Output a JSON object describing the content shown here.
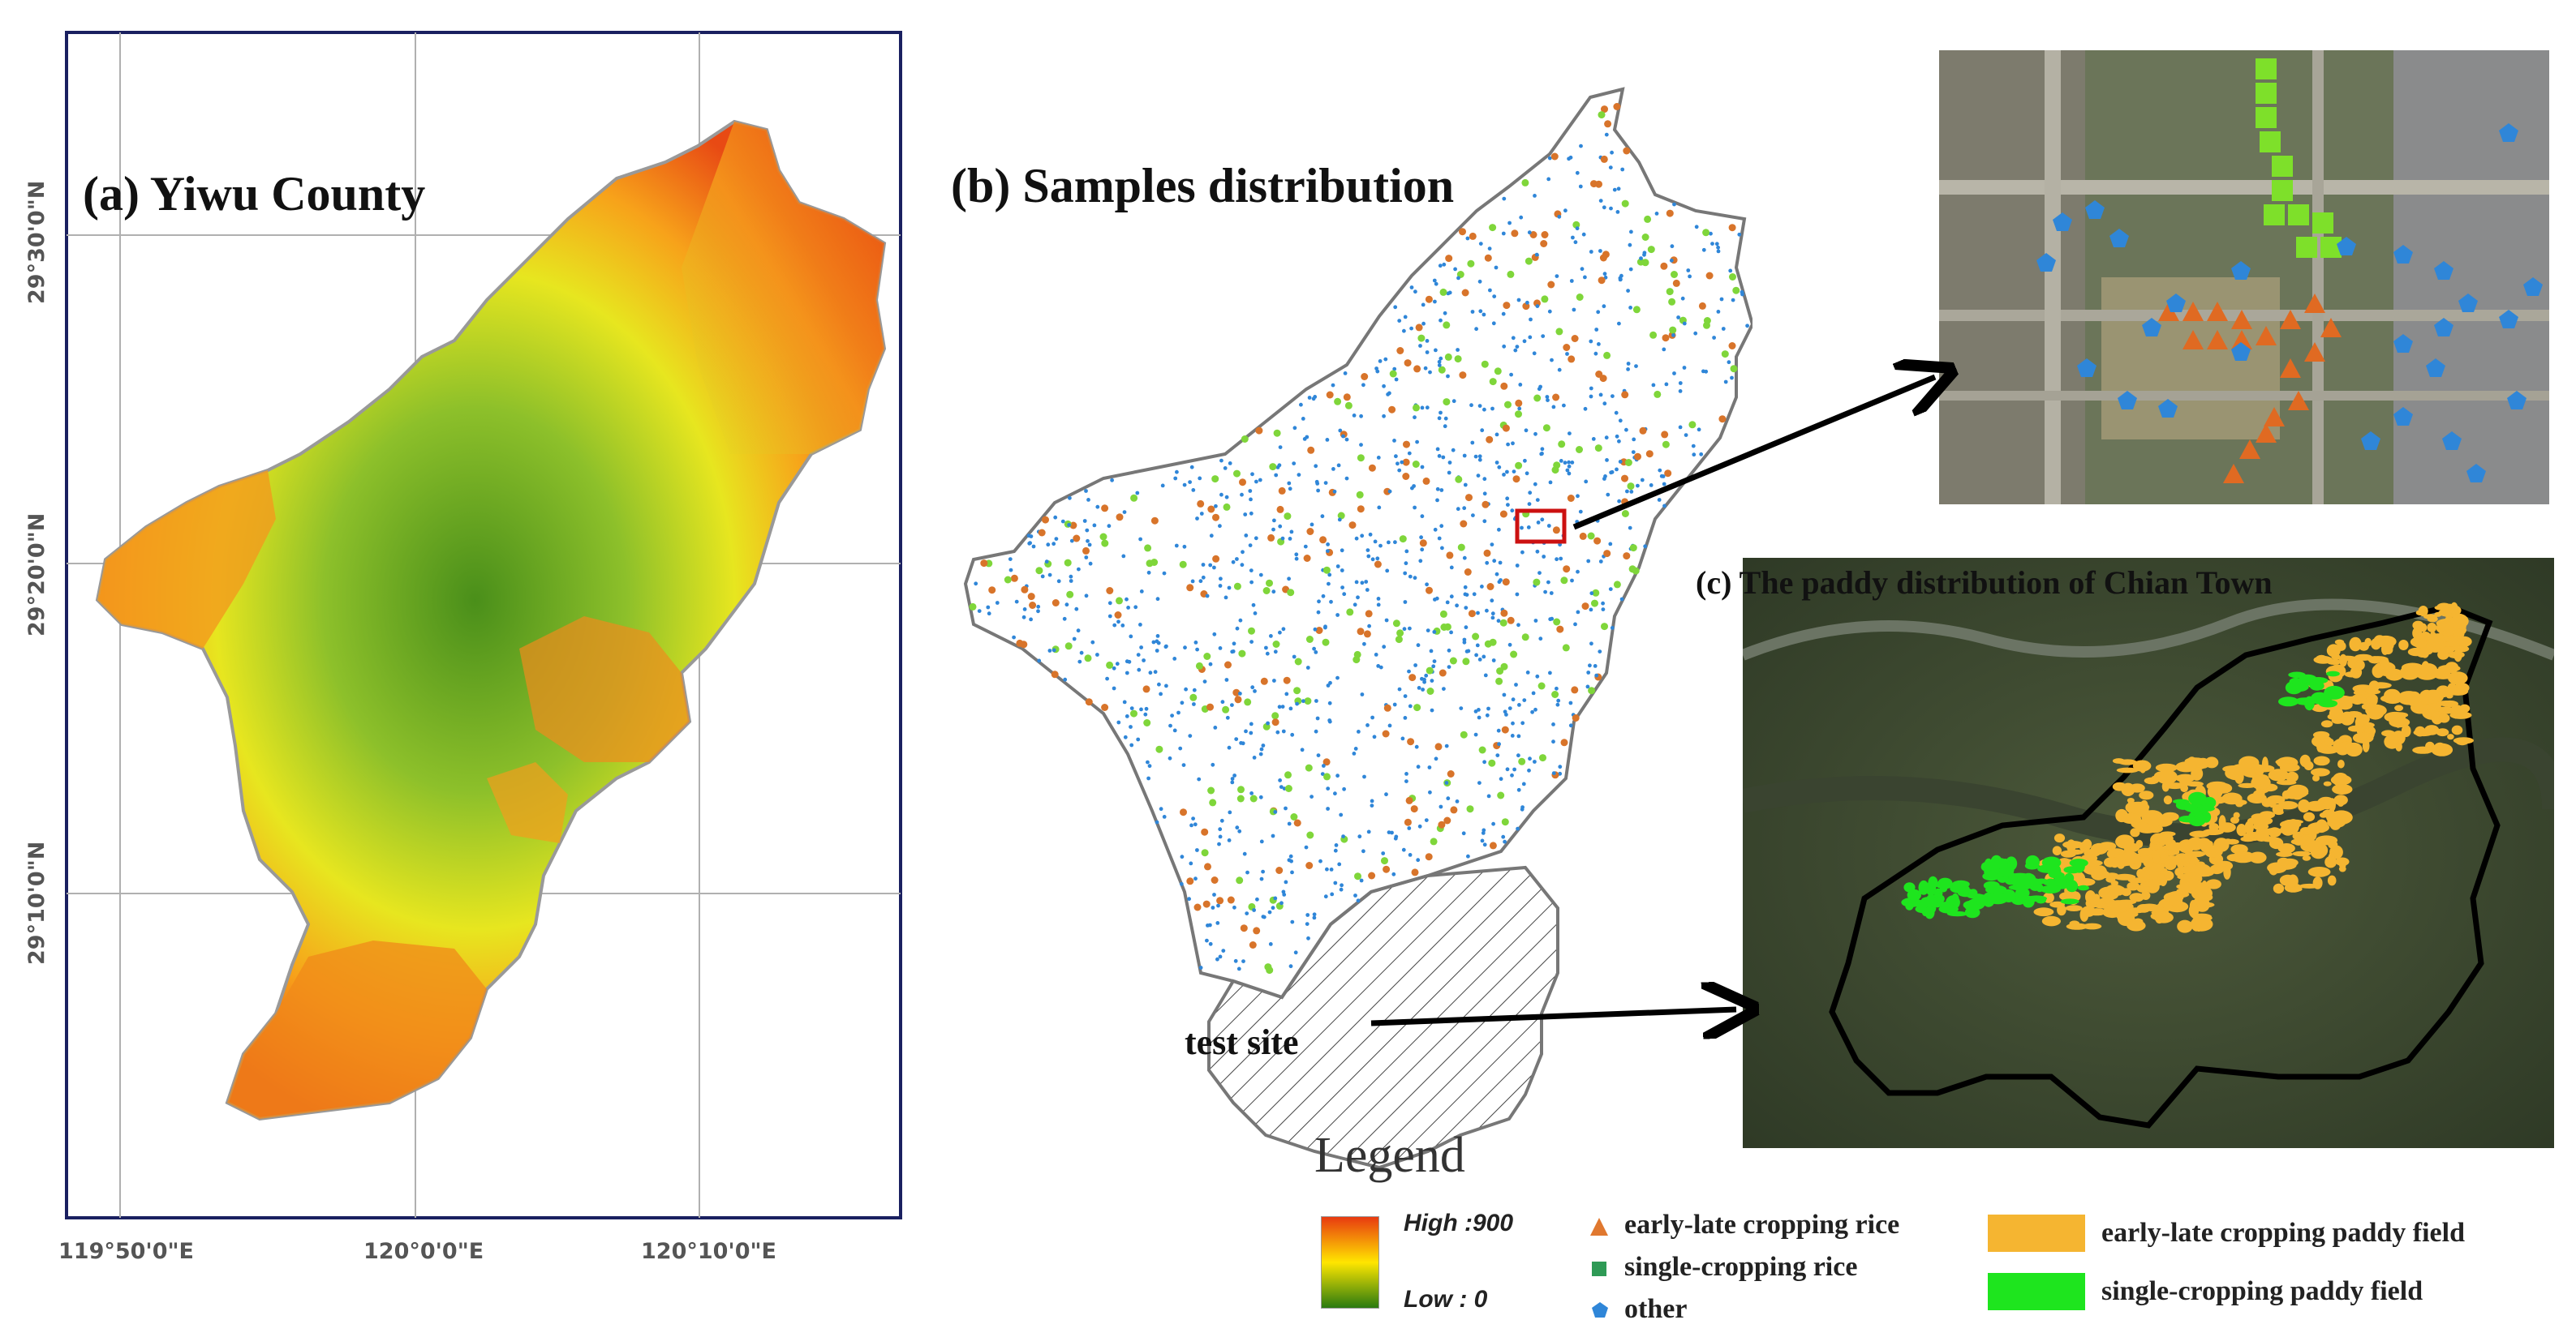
{
  "panel_a": {
    "title": "(a) Yiwu County",
    "lat_labels": [
      "29°30'0\"N",
      "29°20'0\"N",
      "29°10'0\"N"
    ],
    "lon_labels": [
      "119°50'0\"E",
      "120°0'0\"E",
      "120°10'0\"E"
    ]
  },
  "panel_b": {
    "title": "(b) Samples distribution",
    "test_site_label": "test site"
  },
  "panel_c": {
    "title": "(c) The paddy distribution of Chian Town"
  },
  "legend": {
    "title": "Legend",
    "dem_high": "High :900",
    "dem_low": "Low : 0",
    "samples": [
      {
        "label": "early-late cropping rice",
        "symbol": "triangle",
        "color": "#e0782f"
      },
      {
        "label": "single-cropping rice",
        "symbol": "square",
        "color": "#2e9a55"
      },
      {
        "label": "other",
        "symbol": "pentagon",
        "color": "#2f86d8"
      }
    ],
    "paddy": [
      {
        "label": "early-late cropping paddy field",
        "color": "#f5b531"
      },
      {
        "label": "single-cropping paddy field",
        "color": "#1ee51e"
      }
    ]
  },
  "colors": {
    "dem_high": "#e83a10",
    "dem_mid": "#ffe600",
    "dem_low": "#2a7a10",
    "frame": "#1a2060",
    "county_outline": "#7a7a7a",
    "highlight_box": "#cc1111"
  }
}
